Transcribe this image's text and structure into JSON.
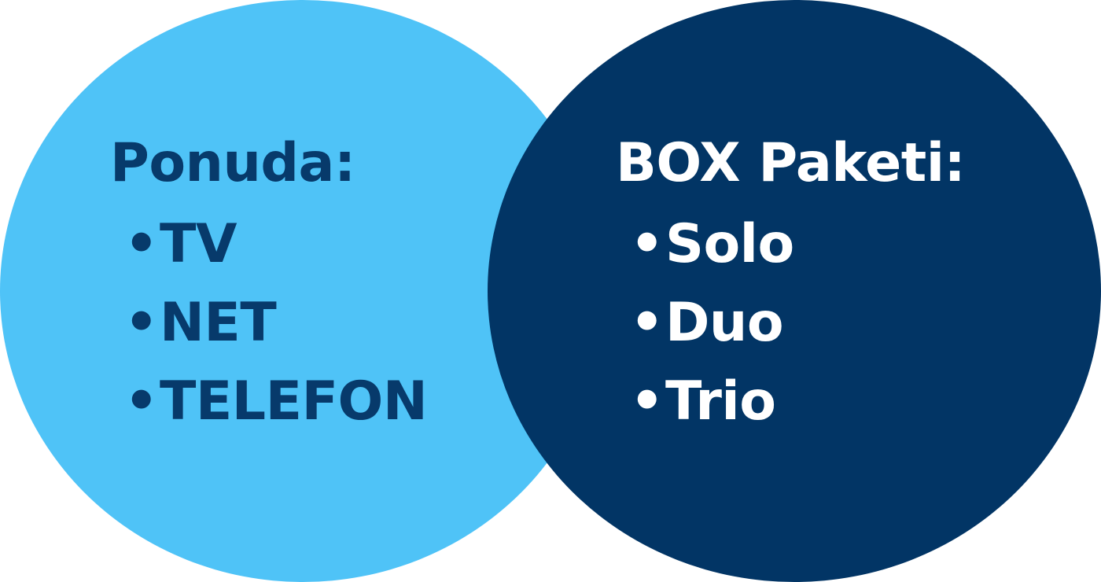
{
  "colors": {
    "left_circle": "#4FC3F7",
    "right_circle": "#023565",
    "left_text": "#073A6B",
    "right_text": "#FFFFFF"
  },
  "left": {
    "heading": "Ponuda:",
    "bullet": "•",
    "items": [
      "TV",
      "NET",
      "TELEFON"
    ]
  },
  "right": {
    "heading": "BOX Paketi:",
    "bullet": "•",
    "items": [
      "Solo",
      "Duo",
      "Trio"
    ]
  }
}
